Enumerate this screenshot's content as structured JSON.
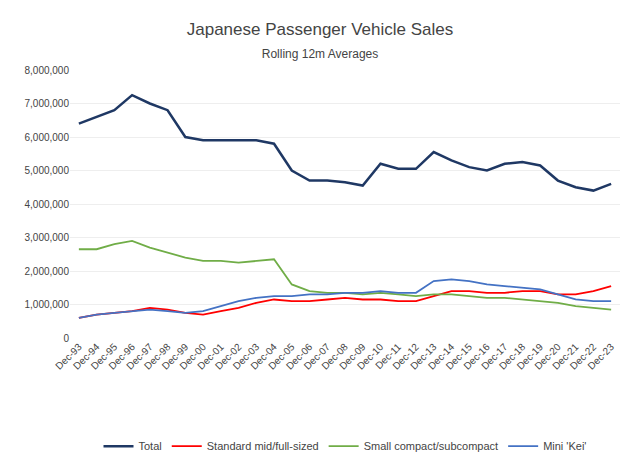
{
  "chart_data": {
    "type": "line",
    "title": "Japanese Passenger Vehicle Sales",
    "subtitle": "Rolling 12m Averages",
    "categories": [
      "Dec-93",
      "Dec-94",
      "Dec-95",
      "Dec-96",
      "Dec-97",
      "Dec-98",
      "Dec-99",
      "Dec-00",
      "Dec-01",
      "Dec-02",
      "Dec-03",
      "Dec-04",
      "Dec-05",
      "Dec-06",
      "Dec-07",
      "Dec-08",
      "Dec-09",
      "Dec-10",
      "Dec-11",
      "Dec-12",
      "Dec-13",
      "Dec-14",
      "Dec-15",
      "Dec-16",
      "Dec-17",
      "Dec-18",
      "Dec-19",
      "Dec-20",
      "Dec-21",
      "Dec-22",
      "Dec-23"
    ],
    "series": [
      {
        "name": "Total",
        "color": "#1f3864",
        "values": [
          6400000,
          6600000,
          6800000,
          7250000,
          7000000,
          6800000,
          6000000,
          5900000,
          5900000,
          5900000,
          5900000,
          5800000,
          5000000,
          4700000,
          4700000,
          4650000,
          4550000,
          5200000,
          5050000,
          5050000,
          5550000,
          5300000,
          5100000,
          5000000,
          5200000,
          5250000,
          5150000,
          4700000,
          4500000,
          4400000,
          4600000
        ]
      },
      {
        "name": "Standard mid/full-sized",
        "color": "#ff0000",
        "values": [
          600000,
          700000,
          750000,
          800000,
          900000,
          850000,
          750000,
          700000,
          800000,
          900000,
          1050000,
          1150000,
          1100000,
          1100000,
          1150000,
          1200000,
          1150000,
          1150000,
          1100000,
          1100000,
          1250000,
          1400000,
          1400000,
          1350000,
          1350000,
          1400000,
          1400000,
          1300000,
          1300000,
          1400000,
          1550000
        ]
      },
      {
        "name": "Small compact/subcompact",
        "color": "#70ad47",
        "values": [
          2650000,
          2650000,
          2800000,
          2900000,
          2700000,
          2550000,
          2400000,
          2300000,
          2300000,
          2250000,
          2300000,
          2350000,
          1600000,
          1400000,
          1350000,
          1350000,
          1300000,
          1350000,
          1300000,
          1250000,
          1300000,
          1300000,
          1250000,
          1200000,
          1200000,
          1150000,
          1100000,
          1050000,
          950000,
          900000,
          850000
        ]
      },
      {
        "name": "Mini 'Kei'",
        "color": "#4472c4",
        "values": [
          600000,
          700000,
          750000,
          800000,
          850000,
          800000,
          750000,
          800000,
          950000,
          1100000,
          1200000,
          1250000,
          1250000,
          1300000,
          1300000,
          1350000,
          1350000,
          1400000,
          1350000,
          1350000,
          1700000,
          1750000,
          1700000,
          1600000,
          1550000,
          1500000,
          1450000,
          1300000,
          1150000,
          1100000,
          1100000
        ]
      }
    ],
    "ylim": [
      0,
      8000000
    ],
    "yticks": [
      0,
      {
        "value": 1000000,
        "label": "1,000,000"
      },
      {
        "value": 2000000,
        "label": "2,000,000"
      },
      {
        "value": 3000000,
        "label": "3,000,000"
      },
      {
        "value": 4000000,
        "label": "4,000,000"
      },
      {
        "value": 5000000,
        "label": "5,000,000"
      },
      {
        "value": 6000000,
        "label": "6,000,000"
      },
      {
        "value": 7000000,
        "label": "7,000,000"
      },
      {
        "value": 8000000,
        "label": "8,000,000"
      }
    ],
    "grid": true,
    "legend": "bottom"
  }
}
